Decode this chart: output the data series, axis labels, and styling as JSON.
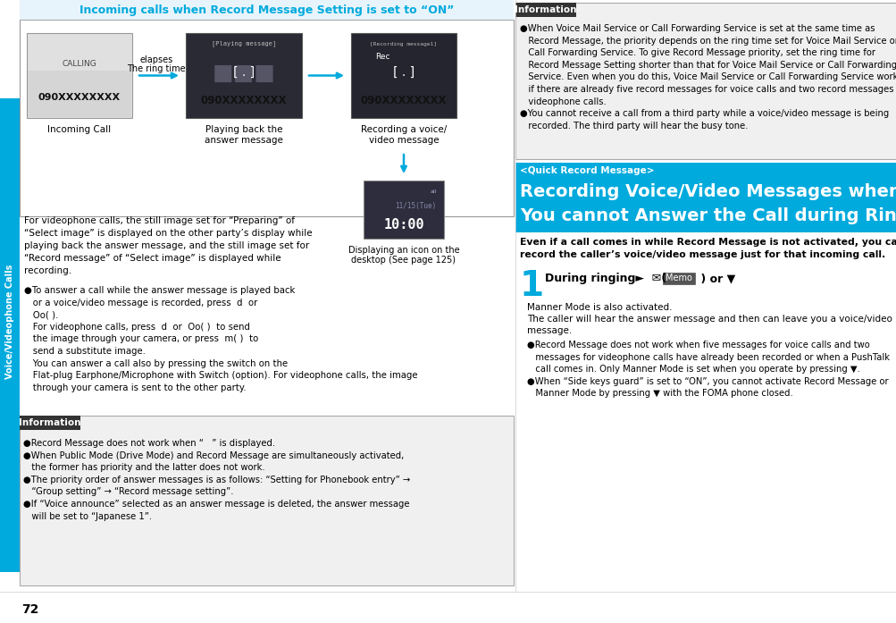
{
  "page_num": "72",
  "sidebar_text": "Voice/Videophone Calls",
  "sidebar_color": "#00aadd",
  "bg_color": "#ffffff",
  "top_section_title": "Incoming calls when Record Message Setting is set to “ON”",
  "top_section_title_color": "#00aadd",
  "info_header_bg": "#333333",
  "info_header_text": "Information",
  "quick_record_header": "<Quick Record Message>",
  "quick_record_bg": "#00aadd",
  "quick_record_title_line1": "Recording Voice/Video Messages when",
  "quick_record_title_line2": "You cannot Answer the Call during Ringing",
  "even_if_line1": "Even if a call comes in while Record Message is not activated, you can",
  "even_if_line2": "record the caller’s voice/video message just for that incoming call.",
  "step1_label": "During ringing►",
  "step1_icons": "(✉ Memo ) or ▼",
  "step1_body1": "Manner Mode is also activated.",
  "step1_body2": "The caller will hear the answer message and then can leave you a voice/video",
  "step1_body3": "message.",
  "flow_arrow_text1": "The ring time",
  "flow_arrow_text2": "elapses",
  "flow_label1": "Incoming Call",
  "flow_label2a": "Playing back the",
  "flow_label2b": "answer message",
  "flow_label3a": "Recording a voice/",
  "flow_label3b": "video message",
  "display_label1": "Displaying an icon on the",
  "display_label2": "desktop (See page 125)"
}
